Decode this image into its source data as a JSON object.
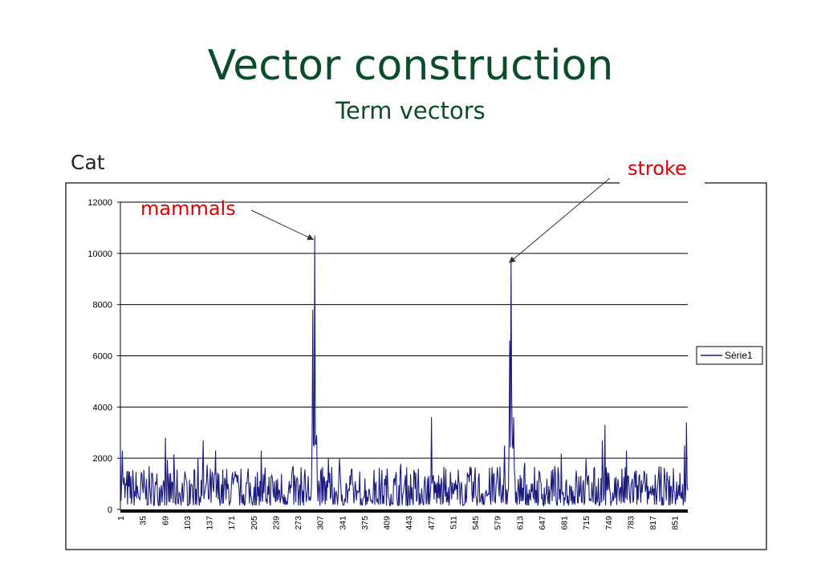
{
  "slide": {
    "title": "Vector construction",
    "subtitle": "Term vectors",
    "side_label": "Cat"
  },
  "colors": {
    "title": "#0b4d2a",
    "series": "#1a1a7e",
    "annotation": "#e00000"
  },
  "chart_data": {
    "type": "line",
    "ylim": [
      0,
      12000
    ],
    "yticks": [
      0,
      2000,
      4000,
      6000,
      8000,
      10000,
      12000
    ],
    "x_range": [
      1,
      871
    ],
    "xticks": [
      1,
      35,
      69,
      103,
      137,
      171,
      205,
      239,
      273,
      307,
      341,
      375,
      409,
      443,
      477,
      511,
      545,
      579,
      613,
      647,
      681,
      715,
      749,
      783,
      817,
      851
    ],
    "grid": "horizontal",
    "legend_position": "right",
    "series": [
      {
        "name": "Série1",
        "peaks": [
          {
            "x": 1,
            "y": 2350
          },
          {
            "x": 4,
            "y": 2300
          },
          {
            "x": 70,
            "y": 2800
          },
          {
            "x": 120,
            "y": 2000
          },
          {
            "x": 128,
            "y": 2700
          },
          {
            "x": 147,
            "y": 2300
          },
          {
            "x": 217,
            "y": 2300
          },
          {
            "x": 296,
            "y": 7800
          },
          {
            "x": 299,
            "y": 10700
          },
          {
            "x": 302,
            "y": 2900
          },
          {
            "x": 337,
            "y": 2000
          },
          {
            "x": 478,
            "y": 3600
          },
          {
            "x": 590,
            "y": 2500
          },
          {
            "x": 598,
            "y": 6600
          },
          {
            "x": 600,
            "y": 9800
          },
          {
            "x": 601,
            "y": 4400
          },
          {
            "x": 604,
            "y": 3600
          },
          {
            "x": 740,
            "y": 2700
          },
          {
            "x": 744,
            "y": 3300
          },
          {
            "x": 777,
            "y": 2300
          },
          {
            "x": 866,
            "y": 2500
          },
          {
            "x": 869,
            "y": 3400
          }
        ],
        "baseline_range": [
          150,
          1700
        ]
      }
    ],
    "annotations": [
      {
        "label": "mammals",
        "x": 299,
        "y": 10700
      },
      {
        "label": "stroke",
        "x": 600,
        "y": 9800
      }
    ]
  }
}
